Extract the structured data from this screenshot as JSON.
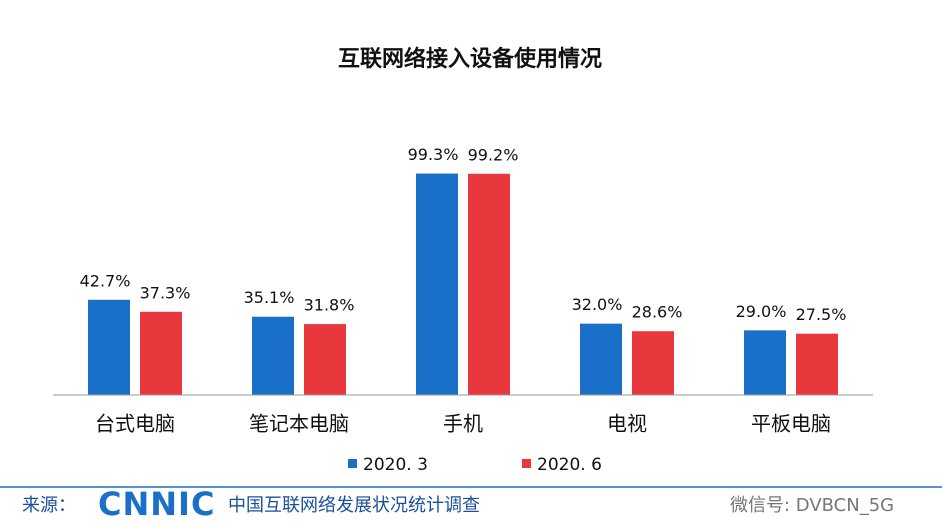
{
  "chart_data": {
    "type": "bar",
    "title": "互联网络接入设备使用情况",
    "categories": [
      "台式电脑",
      "笔记本电脑",
      "手机",
      "电视",
      "平板电脑"
    ],
    "series": [
      {
        "name": "2020. 3",
        "color": "#1a6fc9",
        "values": [
          42.7,
          35.1,
          99.3,
          32.0,
          29.0
        ],
        "value_labels": [
          "42.7%",
          "35.1%",
          "99.3%",
          "32.0%",
          "29.0%"
        ]
      },
      {
        "name": "2020. 6",
        "color": "#e8373d",
        "values": [
          37.3,
          31.8,
          99.2,
          28.6,
          27.5
        ],
        "value_labels": [
          "37.3%",
          "31.8%",
          "99.2%",
          "28.6%",
          "27.5%"
        ]
      }
    ],
    "ylim": [
      0,
      100
    ],
    "legend": "bottom"
  },
  "footer": {
    "source_label": "来源：",
    "logo": "CNNIC",
    "source": "中国互联网络发展状况统计调查",
    "wechat": "微信号: DVBCN_5G"
  }
}
